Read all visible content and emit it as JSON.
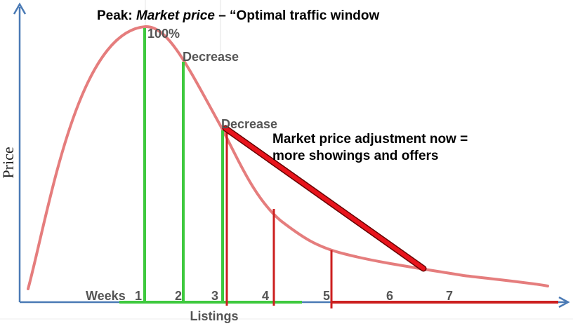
{
  "title": {
    "prefix": "Peak: ",
    "italic": "Market price",
    "suffix": " – “Optimal traffic window"
  },
  "y_axis_label": "Price",
  "x_axis_label": "Listings",
  "peak_label": "100%",
  "decrease_label_1": "Decrease",
  "decrease_label_2": "Decrease",
  "annotation": {
    "line1": "Market price adjustment now =",
    "line2": "more showings and offers"
  },
  "weeks_prefix": "Weeks",
  "weeks": [
    "1",
    "2",
    "3",
    "4",
    "5",
    "6",
    "7"
  ],
  "colors": {
    "axis": "#4a7ab5",
    "curve": "#e06666",
    "green": "#3ec93e",
    "red": "#cc1f1f"
  }
}
